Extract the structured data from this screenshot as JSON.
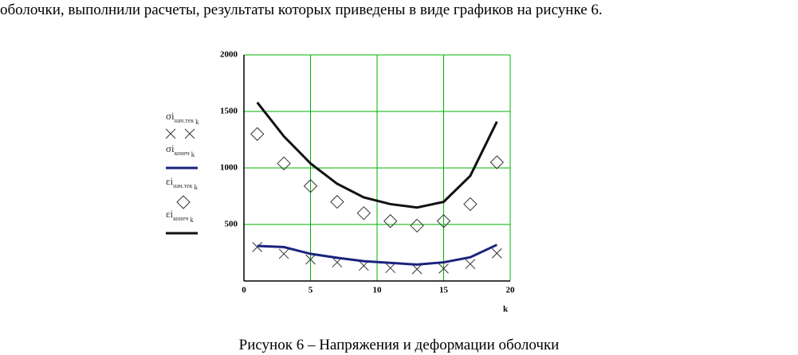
{
  "text": "оболочки, выполнили расчеты, результаты которых приведены в виде графиков на рисунке 6.",
  "chart_data": {
    "type": "line",
    "x_label": "k",
    "x": [
      1,
      3,
      5,
      7,
      9,
      11,
      13,
      15,
      17,
      19
    ],
    "xlim": [
      0,
      20
    ],
    "xticks": [
      0,
      5,
      10,
      15,
      20
    ],
    "ylim": [
      0,
      2000
    ],
    "yticks": [
      500,
      1000,
      1500,
      2000
    ],
    "grid": true,
    "grid_color": "#00b000",
    "series": [
      {
        "name": "σi",
        "subscript": "нач.тек",
        "index": "k",
        "style": "marker-x",
        "color": "#333333",
        "values": [
          300,
          240,
          190,
          165,
          135,
          115,
          105,
          110,
          150,
          245
        ]
      },
      {
        "name": "σi",
        "subscript": "конеч",
        "index": "k",
        "style": "line",
        "color": "#1a237e",
        "values": [
          310,
          300,
          240,
          205,
          175,
          160,
          145,
          165,
          210,
          320
        ]
      },
      {
        "name": "εi",
        "subscript": "нач.тек",
        "index": "k",
        "style": "marker-diamond",
        "color": "#333333",
        "values": [
          1300,
          1040,
          840,
          700,
          600,
          530,
          490,
          530,
          680,
          1050
        ]
      },
      {
        "name": "εi",
        "subscript": "конеч",
        "index": "k",
        "style": "line",
        "color": "#111111",
        "values": [
          1580,
          1280,
          1040,
          860,
          740,
          680,
          650,
          700,
          930,
          1410
        ]
      }
    ]
  },
  "caption": "Рисунок 6 – Напряжения и деформации оболочки"
}
